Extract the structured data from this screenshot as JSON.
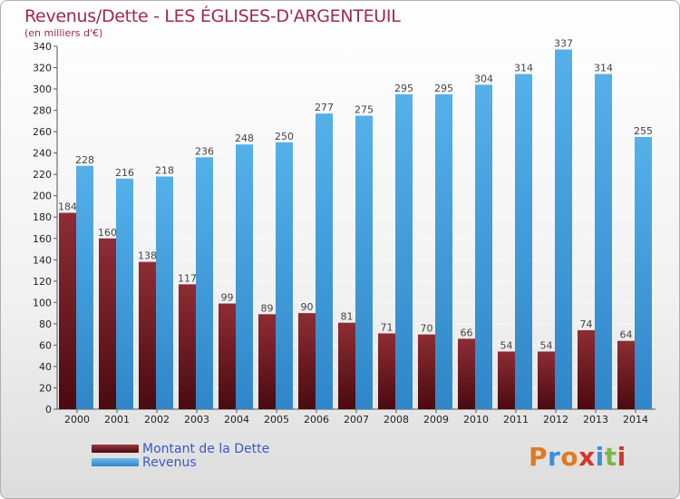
{
  "title": "Revenus/Dette - LES ÉGLISES-D'ARGENTEUIL",
  "subtitle": "(en milliers d'€)",
  "legend": {
    "dette_label": "Montant de la Dette",
    "revenus_label": "Revenus"
  },
  "logo": {
    "letters": [
      "P",
      "r",
      "o",
      "x",
      "i",
      "t",
      "i"
    ],
    "colors": [
      "#e07a1f",
      "#3a8fd8",
      "#e07a1f",
      "#d6352b",
      "#3a8fd8",
      "#7ab648",
      "#d6352b"
    ]
  },
  "colors": {
    "dette": "#7a1f25",
    "revenus": "#3d9ee0",
    "label_text": "#444444",
    "axis_text": "#222222"
  },
  "chart_data": {
    "type": "bar",
    "categories": [
      "2000",
      "2001",
      "2002",
      "2003",
      "2004",
      "2005",
      "2006",
      "2007",
      "2008",
      "2009",
      "2010",
      "2011",
      "2012",
      "2013",
      "2014"
    ],
    "series": [
      {
        "name": "Montant de la Dette",
        "values": [
          184,
          160,
          138,
          117,
          99,
          89,
          90,
          81,
          71,
          70,
          66,
          54,
          54,
          74,
          64
        ]
      },
      {
        "name": "Revenus",
        "values": [
          228,
          216,
          218,
          236,
          248,
          250,
          277,
          275,
          295,
          295,
          304,
          314,
          337,
          314,
          255
        ]
      }
    ],
    "ylim": [
      0,
      340
    ],
    "yticks": [
      0,
      20,
      40,
      60,
      80,
      100,
      120,
      140,
      160,
      180,
      200,
      220,
      240,
      260,
      280,
      300,
      320,
      340
    ],
    "grid": true,
    "legend_position": "bottom-left"
  }
}
